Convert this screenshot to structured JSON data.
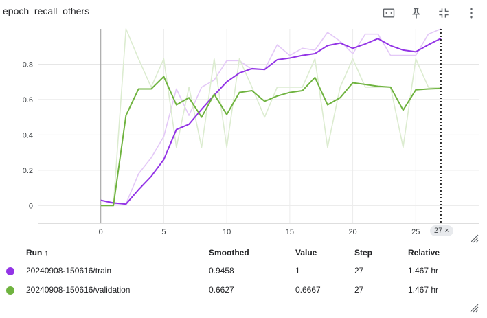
{
  "card": {
    "title": "epoch_recall_others",
    "icons": [
      "fit-domain-icon",
      "pin-icon",
      "collapse-icon",
      "more-vert-icon"
    ]
  },
  "chart_data": {
    "type": "line",
    "title": "epoch_recall_others",
    "xlabel": "",
    "ylabel": "",
    "xlim": [
      -5,
      30
    ],
    "ylim": [
      -0.1,
      1.0
    ],
    "xticks": [
      0,
      5,
      10,
      15,
      20,
      25
    ],
    "yticks": [
      0,
      0.2,
      0.4,
      0.6,
      0.8
    ],
    "ytick_labels": [
      "0",
      "0.2",
      "0.4",
      "0.6",
      "0.8"
    ],
    "grid": true,
    "cursor_step": 27,
    "series": [
      {
        "name": "20240908-150616/train",
        "color": "#9334e6",
        "raw_color": "#e3c8f7",
        "x": [
          0,
          1,
          2,
          3,
          4,
          5,
          6,
          7,
          8,
          9,
          10,
          11,
          12,
          13,
          14,
          15,
          16,
          17,
          18,
          19,
          20,
          21,
          22,
          23,
          24,
          25,
          26,
          27
        ],
        "raw": [
          0.03,
          0.01,
          0.01,
          0.18,
          0.27,
          0.39,
          0.66,
          0.51,
          0.67,
          0.71,
          0.82,
          0.82,
          0.77,
          0.77,
          0.91,
          0.85,
          0.89,
          0.88,
          0.98,
          0.93,
          0.86,
          0.97,
          0.97,
          0.85,
          0.85,
          0.85,
          0.97,
          1.0
        ],
        "smoothed": [
          0.03,
          0.015,
          0.008,
          0.09,
          0.165,
          0.26,
          0.43,
          0.46,
          0.545,
          0.625,
          0.7,
          0.75,
          0.775,
          0.77,
          0.825,
          0.835,
          0.85,
          0.86,
          0.905,
          0.92,
          0.89,
          0.915,
          0.945,
          0.905,
          0.88,
          0.87,
          0.91,
          0.9458
        ]
      },
      {
        "name": "20240908-150616/validation",
        "color": "#6fb33f",
        "raw_color": "#dcecd0",
        "x": [
          0,
          1,
          2,
          3,
          4,
          5,
          6,
          7,
          8,
          9,
          10,
          11,
          12,
          13,
          14,
          15,
          16,
          17,
          18,
          19,
          20,
          21,
          22,
          23,
          24,
          25,
          26,
          27
        ],
        "raw": [
          0.0,
          0.0,
          1.0,
          0.83,
          0.67,
          0.83,
          0.33,
          0.67,
          0.33,
          0.83,
          0.33,
          0.83,
          0.67,
          0.5,
          0.67,
          0.67,
          0.67,
          0.83,
          0.33,
          0.67,
          0.83,
          0.67,
          0.67,
          0.67,
          0.33,
          0.83,
          0.67,
          0.6667
        ],
        "smoothed": [
          0.0,
          0.0,
          0.51,
          0.66,
          0.66,
          0.73,
          0.57,
          0.61,
          0.5,
          0.63,
          0.515,
          0.64,
          0.65,
          0.59,
          0.62,
          0.64,
          0.65,
          0.725,
          0.57,
          0.61,
          0.695,
          0.685,
          0.675,
          0.67,
          0.54,
          0.655,
          0.66,
          0.6627
        ]
      }
    ]
  },
  "table": {
    "headers": {
      "run": "Run ↑",
      "smoothed": "Smoothed",
      "value": "Value",
      "step": "Step",
      "relative": "Relative"
    },
    "rows": [
      {
        "color": "#9334e6",
        "run": "20240908-150616/train",
        "smoothed": "0.9458",
        "value": "1",
        "step": "27",
        "relative": "1.467 hr"
      },
      {
        "color": "#6fb33f",
        "run": "20240908-150616/validation",
        "smoothed": "0.6627",
        "value": "0.6667",
        "step": "27",
        "relative": "1.467 hr"
      }
    ]
  },
  "step_chip": {
    "label": "27",
    "close": "×"
  }
}
